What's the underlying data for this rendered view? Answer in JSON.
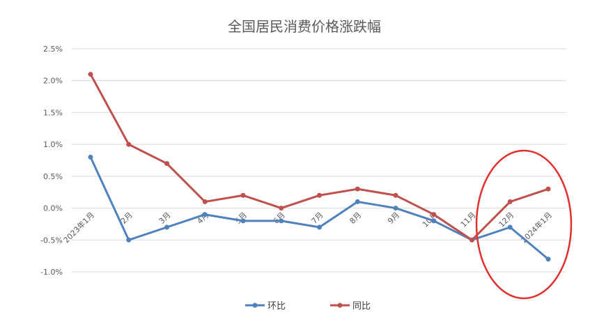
{
  "chart_data": {
    "type": "line",
    "title": "全国居民消费价格涨跌幅",
    "categories": [
      "2023年1月",
      "2月",
      "3月",
      "4月",
      "5月",
      "6月",
      "7月",
      "8月",
      "9月",
      "10月",
      "11月",
      "12月",
      "2024年1月"
    ],
    "ylim": [
      -1.0,
      2.5
    ],
    "yticks": [
      "2.5%",
      "2.0%",
      "1.5%",
      "1.0%",
      "0.5%",
      "0.0%",
      "-0.5%",
      "-1.0%"
    ],
    "ytick_values": [
      2.5,
      2.0,
      1.5,
      1.0,
      0.5,
      0.0,
      -0.5,
      -1.0
    ],
    "grid": true,
    "legend_position": "bottom",
    "series": [
      {
        "name": "环比",
        "color": "#4f81bd",
        "values": [
          0.8,
          -0.5,
          -0.3,
          -0.1,
          -0.2,
          -0.2,
          -0.3,
          0.1,
          0.0,
          -0.2,
          -0.5,
          -0.3,
          -0.8
        ]
      },
      {
        "name": "同比",
        "color": "#c0504d",
        "values": [
          2.1,
          1.0,
          0.7,
          0.1,
          0.2,
          0.0,
          0.2,
          0.3,
          0.2,
          -0.1,
          -0.5,
          0.1,
          0.3
        ]
      }
    ],
    "annotation": {
      "type": "circle-highlight",
      "color": "#e0302f",
      "range": [
        "11月",
        "2024年1月"
      ]
    }
  }
}
